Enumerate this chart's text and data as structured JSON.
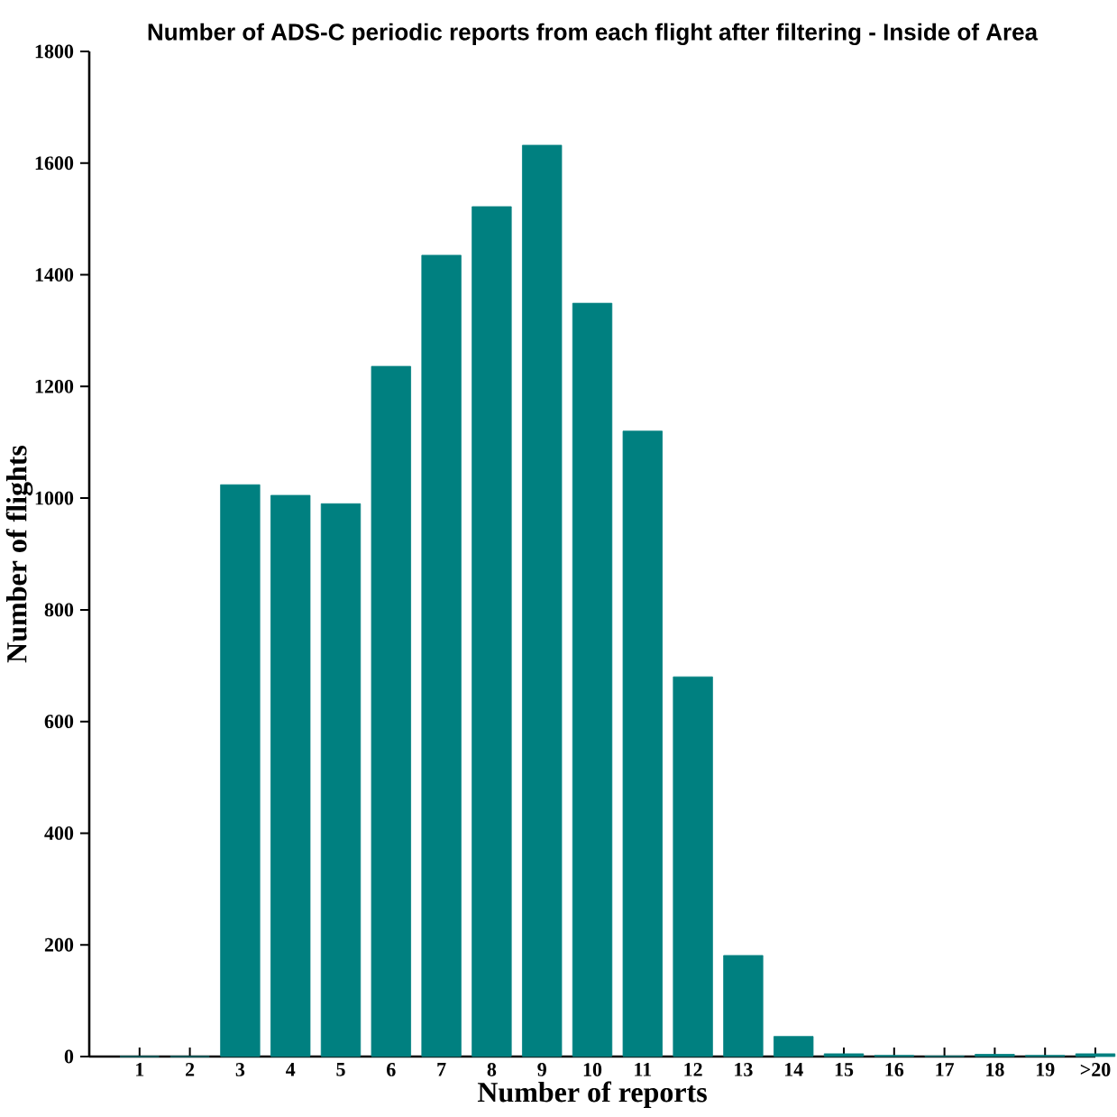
{
  "chart_data": {
    "type": "bar",
    "title": "Number of ADS-C periodic reports from each flight after filtering - Inside of Area",
    "xlabel": "Number of reports",
    "ylabel": "Number of flights",
    "categories": [
      "1",
      "2",
      "3",
      "4",
      "5",
      "6",
      "7",
      "8",
      "9",
      "10",
      "11",
      "12",
      "13",
      "14",
      "15",
      "16",
      "17",
      "18",
      "19",
      ">20"
    ],
    "values": [
      0,
      0,
      1024,
      1005,
      990,
      1236,
      1435,
      1522,
      1632,
      1349,
      1120,
      680,
      181,
      36,
      5,
      2,
      1,
      4,
      2,
      5
    ],
    "color": "#008080",
    "ylim": [
      0,
      1800
    ],
    "yticks": [
      0,
      200,
      400,
      600,
      800,
      1000,
      1200,
      1400,
      1600,
      1800
    ],
    "grid": false
  }
}
